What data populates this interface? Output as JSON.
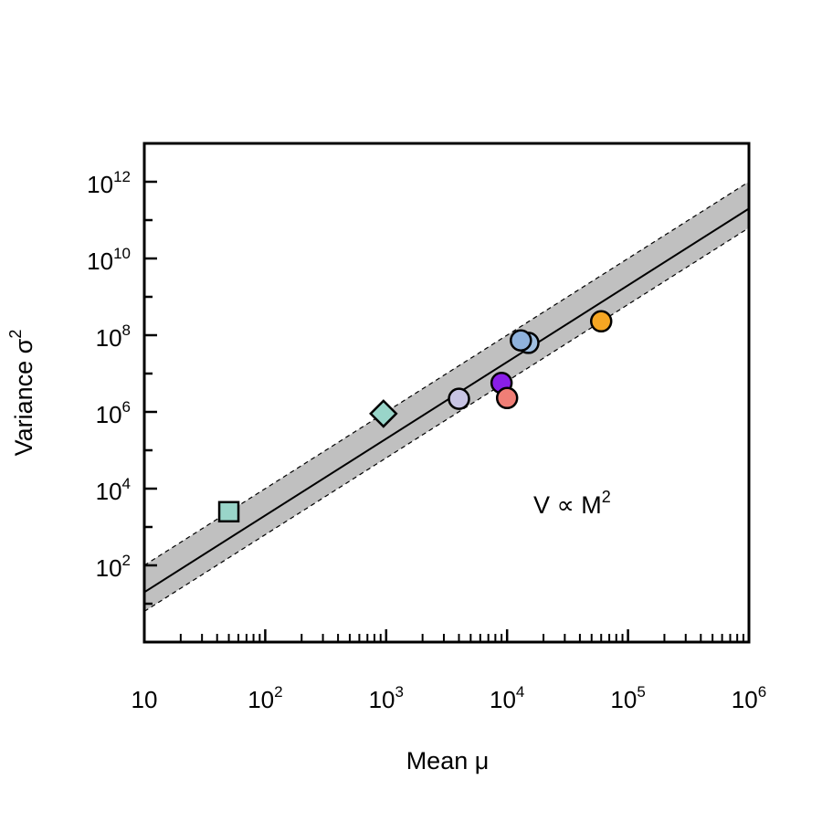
{
  "chart_data": {
    "type": "scatter",
    "xlabel": "Mean  μ",
    "ylabel": "Variance σ",
    "ylabel_superscript": "2",
    "x_scale": "log",
    "y_scale": "log",
    "xlim": [
      10,
      1000000
    ],
    "ylim": [
      1,
      10000000000000
    ],
    "x_ticks": [
      {
        "base": "10",
        "exp": ""
      },
      {
        "base": "10",
        "exp": "2"
      },
      {
        "base": "10",
        "exp": "3"
      },
      {
        "base": "10",
        "exp": "4"
      },
      {
        "base": "10",
        "exp": "5"
      },
      {
        "base": "10",
        "exp": "6"
      }
    ],
    "y_ticks": [
      {
        "base": "10",
        "exp": "2"
      },
      {
        "base": "10",
        "exp": "4"
      },
      {
        "base": "10",
        "exp": "6"
      },
      {
        "base": "10",
        "exp": "8"
      },
      {
        "base": "10",
        "exp": "10"
      },
      {
        "base": "10",
        "exp": "12"
      }
    ],
    "annotation": {
      "text": "V ∝ M",
      "superscript": "2"
    },
    "fit_line": {
      "slope": 2,
      "intercept_log10": -0.7
    },
    "band": {
      "lower_intercept_log10": -1.2,
      "upper_intercept_log10": 0.0,
      "color": "#c0c0c0"
    },
    "points": [
      {
        "x": 50,
        "y": 2500,
        "shape": "square",
        "color": "#99d5c9"
      },
      {
        "x": 950,
        "y": 900000,
        "shape": "diamond",
        "color": "#99d5c9"
      },
      {
        "x": 4000,
        "y": 2200000,
        "shape": "circle",
        "color": "#c8c4e4"
      },
      {
        "x": 9000,
        "y": 5700000,
        "shape": "circle",
        "color": "#8a1ee8"
      },
      {
        "x": 10000,
        "y": 2300000,
        "shape": "circle",
        "color": "#f07e76"
      },
      {
        "x": 15000,
        "y": 63000000,
        "shape": "circle",
        "color": "#a0bfe0"
      },
      {
        "x": 13000,
        "y": 73000000,
        "shape": "circle",
        "color": "#8fb2dc"
      },
      {
        "x": 60000,
        "y": 230000000,
        "shape": "circle",
        "color": "#f5a623"
      }
    ]
  }
}
